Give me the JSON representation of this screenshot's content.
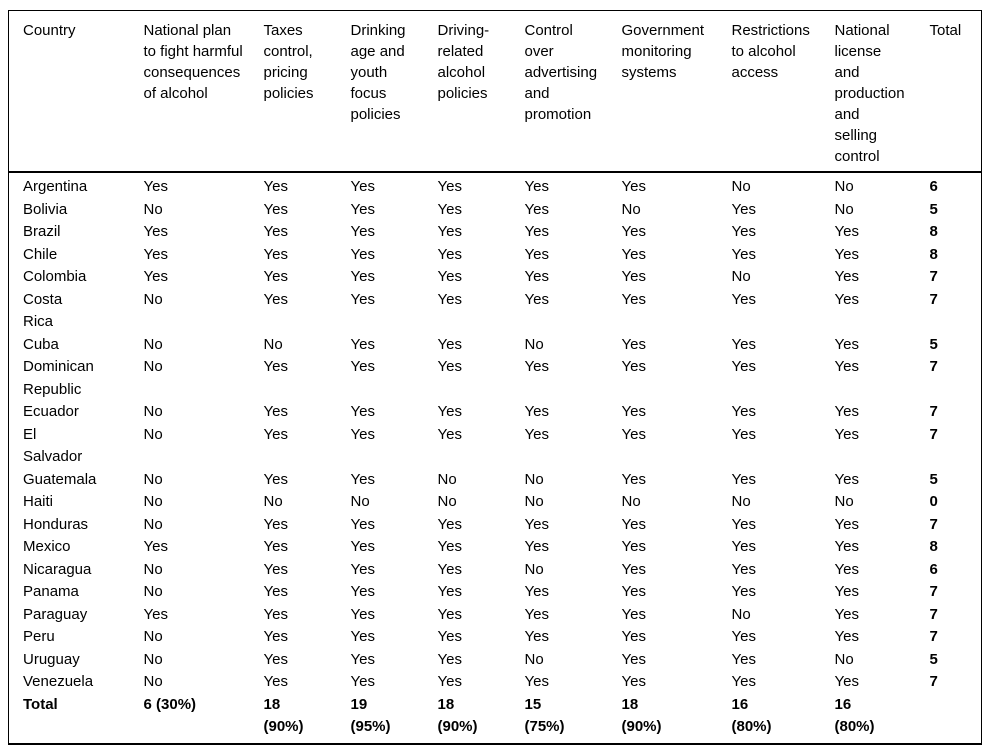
{
  "colors": {
    "border": "#000000",
    "text": "#000000",
    "background": "#ffffff"
  },
  "table": {
    "columns": [
      {
        "key": "country",
        "label": "Country"
      },
      {
        "key": "national-plan",
        "label": "National plan\nto fight harmful\nconsequences\nof alcohol"
      },
      {
        "key": "taxes-pricing",
        "label": "Taxes\ncontrol,\npricing\npolicies"
      },
      {
        "key": "drinking-age",
        "label": "Drinking\nage and\nyouth\nfocus\npolicies"
      },
      {
        "key": "driving-related",
        "label": "Driving-\nrelated\nalcohol\npolicies"
      },
      {
        "key": "advertising-control",
        "label": "Control\nover\nadvertising\nand\npromotion"
      },
      {
        "key": "monitoring-systems",
        "label": "Government\nmonitoring\nsystems"
      },
      {
        "key": "restrictions-access",
        "label": "Restrictions\nto alcohol\naccess"
      },
      {
        "key": "license-production",
        "label": "National\nlicense\nand\nproduction\nand\nselling\ncontrol"
      },
      {
        "key": "total",
        "label": "Total"
      }
    ],
    "rows": [
      {
        "country": "Argentina",
        "values": [
          "Yes",
          "Yes",
          "Yes",
          "Yes",
          "Yes",
          "Yes",
          "No",
          "No"
        ],
        "total": "6"
      },
      {
        "country": "Bolivia",
        "values": [
          "No",
          "Yes",
          "Yes",
          "Yes",
          "Yes",
          "No",
          "Yes",
          "No"
        ],
        "total": "5"
      },
      {
        "country": "Brazil",
        "values": [
          "Yes",
          "Yes",
          "Yes",
          "Yes",
          "Yes",
          "Yes",
          "Yes",
          "Yes"
        ],
        "total": "8"
      },
      {
        "country": "Chile",
        "values": [
          "Yes",
          "Yes",
          "Yes",
          "Yes",
          "Yes",
          "Yes",
          "Yes",
          "Yes"
        ],
        "total": "8"
      },
      {
        "country": "Colombia",
        "values": [
          "Yes",
          "Yes",
          "Yes",
          "Yes",
          "Yes",
          "Yes",
          "No",
          "Yes"
        ],
        "total": "7"
      },
      {
        "country": "Costa\nRica",
        "values": [
          "No",
          "Yes",
          "Yes",
          "Yes",
          "Yes",
          "Yes",
          "Yes",
          "Yes"
        ],
        "total": "7"
      },
      {
        "country": "Cuba",
        "values": [
          "No",
          "No",
          "Yes",
          "Yes",
          "No",
          "Yes",
          "Yes",
          "Yes"
        ],
        "total": "5"
      },
      {
        "country": "Dominican\nRepublic",
        "values": [
          "No",
          "Yes",
          "Yes",
          "Yes",
          "Yes",
          "Yes",
          "Yes",
          "Yes"
        ],
        "total": "7"
      },
      {
        "country": "Ecuador",
        "values": [
          "No",
          "Yes",
          "Yes",
          "Yes",
          "Yes",
          "Yes",
          "Yes",
          "Yes"
        ],
        "total": "7"
      },
      {
        "country": "El\nSalvador",
        "values": [
          "No",
          "Yes",
          "Yes",
          "Yes",
          "Yes",
          "Yes",
          "Yes",
          "Yes"
        ],
        "total": "7"
      },
      {
        "country": "Guatemala",
        "values": [
          "No",
          "Yes",
          "Yes",
          "No",
          "No",
          "Yes",
          "Yes",
          "Yes"
        ],
        "total": "5"
      },
      {
        "country": "Haiti",
        "values": [
          "No",
          "No",
          "No",
          "No",
          "No",
          "No",
          "No",
          "No"
        ],
        "total": "0"
      },
      {
        "country": "Honduras",
        "values": [
          "No",
          "Yes",
          "Yes",
          "Yes",
          "Yes",
          "Yes",
          "Yes",
          "Yes"
        ],
        "total": "7"
      },
      {
        "country": "Mexico",
        "values": [
          "Yes",
          "Yes",
          "Yes",
          "Yes",
          "Yes",
          "Yes",
          "Yes",
          "Yes"
        ],
        "total": "8"
      },
      {
        "country": "Nicaragua",
        "values": [
          "No",
          "Yes",
          "Yes",
          "Yes",
          "No",
          "Yes",
          "Yes",
          "Yes"
        ],
        "total": "6"
      },
      {
        "country": "Panama",
        "values": [
          "No",
          "Yes",
          "Yes",
          "Yes",
          "Yes",
          "Yes",
          "Yes",
          "Yes"
        ],
        "total": "7"
      },
      {
        "country": "Paraguay",
        "values": [
          "Yes",
          "Yes",
          "Yes",
          "Yes",
          "Yes",
          "Yes",
          "No",
          "Yes"
        ],
        "total": "7"
      },
      {
        "country": "Peru",
        "values": [
          "No",
          "Yes",
          "Yes",
          "Yes",
          "Yes",
          "Yes",
          "Yes",
          "Yes"
        ],
        "total": "7"
      },
      {
        "country": "Uruguay",
        "values": [
          "No",
          "Yes",
          "Yes",
          "Yes",
          "No",
          "Yes",
          "Yes",
          "No"
        ],
        "total": "5"
      },
      {
        "country": "Venezuela",
        "values": [
          "No",
          "Yes",
          "Yes",
          "Yes",
          "Yes",
          "Yes",
          "Yes",
          "Yes"
        ],
        "total": "7"
      }
    ],
    "total_row": {
      "label": "Total",
      "values": [
        "6 (30%)",
        "18\n(90%)",
        "19\n(95%)",
        "18\n(90%)",
        "15\n(75%)",
        "18\n(90%)",
        "16\n(80%)",
        "16\n(80%)"
      ],
      "total": ""
    }
  }
}
